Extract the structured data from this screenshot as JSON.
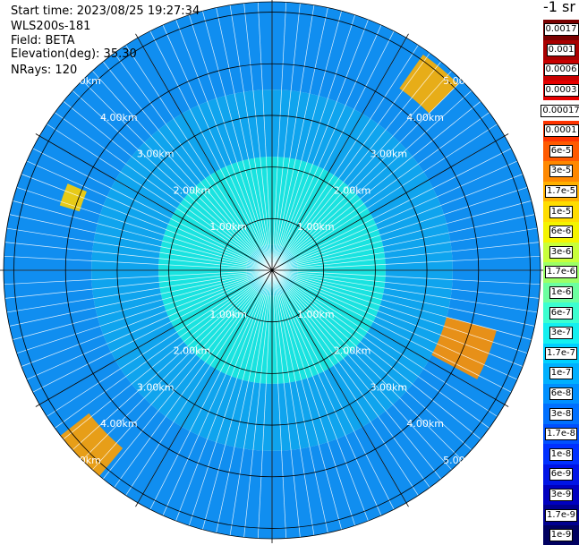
{
  "info": {
    "start_time": "Start time: 2023/08/25 19:27:34",
    "instrument": "WLS200s-181",
    "field": "Field: BETA",
    "elevation": "Elevation(deg): 35.30",
    "nrays": "NRays: 120"
  },
  "legend": {
    "title": "-1 sr",
    "entries": [
      {
        "label": "0.0017",
        "color": "#7a0000"
      },
      {
        "label": "0.001",
        "color": "#a80000"
      },
      {
        "label": "0.0006",
        "color": "#c80000"
      },
      {
        "label": "0.0003",
        "color": "#e60000"
      },
      {
        "label": "0.00017",
        "color": "#ffffff"
      },
      {
        "label": "0.0001",
        "color": "#ff3300"
      },
      {
        "label": "6e-5",
        "color": "#ff5a00"
      },
      {
        "label": "3e-5",
        "color": "#ff8800"
      },
      {
        "label": "1.7e-5",
        "color": "#ffb000"
      },
      {
        "label": "1e-5",
        "color": "#ffdd00"
      },
      {
        "label": "6e-6",
        "color": "#f4f400"
      },
      {
        "label": "3e-6",
        "color": "#c8ff3a"
      },
      {
        "label": "1.7e-6",
        "color": "#9cff66"
      },
      {
        "label": "1e-6",
        "color": "#6cffa0"
      },
      {
        "label": "6e-7",
        "color": "#3cffd0"
      },
      {
        "label": "3e-7",
        "color": "#14f0f0"
      },
      {
        "label": "1.7e-7",
        "color": "#00d0ff"
      },
      {
        "label": "1e-7",
        "color": "#00b0ff"
      },
      {
        "label": "6e-8",
        "color": "#0090ff"
      },
      {
        "label": "3e-8",
        "color": "#0070ff"
      },
      {
        "label": "1.7e-8",
        "color": "#0050ff"
      },
      {
        "label": "1e-8",
        "color": "#0030ff"
      },
      {
        "label": "6e-9",
        "color": "#0014e6"
      },
      {
        "label": "3e-9",
        "color": "#0000c0"
      },
      {
        "label": "1.7e-9",
        "color": "#000090"
      },
      {
        "label": "1e-9",
        "color": "#000060"
      }
    ]
  },
  "chart_data": {
    "type": "heatmap",
    "projection": "polar-ppi",
    "nrays": 120,
    "range_rings_km": [
      1,
      2,
      3,
      4,
      5
    ],
    "max_range_km": 5.2,
    "ring_labels": [
      "1.00km",
      "2.00km",
      "3.00km",
      "4.00km",
      "5.00km"
    ],
    "azimuth_lines_deg": [
      0,
      30,
      60,
      90,
      120,
      150,
      180,
      210,
      240,
      270,
      300,
      330
    ],
    "value_zones": [
      {
        "range_km": [
          0,
          0.5
        ],
        "color": "#14d6ea"
      },
      {
        "range_km": [
          0.5,
          2.2
        ],
        "color": "#19e3e0"
      },
      {
        "range_km": [
          2.2,
          3.5
        ],
        "color": "#0fa4ee"
      },
      {
        "range_km": [
          3.5,
          5.2
        ],
        "color": "#108ef0"
      }
    ],
    "hotspots": [
      {
        "azimuth_deg": [
          35,
          45
        ],
        "range_km": [
          4.3,
          5.1
        ],
        "color": "#ffb000"
      },
      {
        "azimuth_deg": [
          105,
          118
        ],
        "range_km": [
          3.5,
          4.5
        ],
        "color": "#ff9000"
      },
      {
        "azimuth_deg": [
          220,
          232
        ],
        "range_km": [
          4.5,
          5.2
        ],
        "color": "#ffa000"
      },
      {
        "azimuth_deg": [
          287,
          293
        ],
        "range_km": [
          3.9,
          4.3
        ],
        "color": "#ffd000"
      }
    ]
  }
}
